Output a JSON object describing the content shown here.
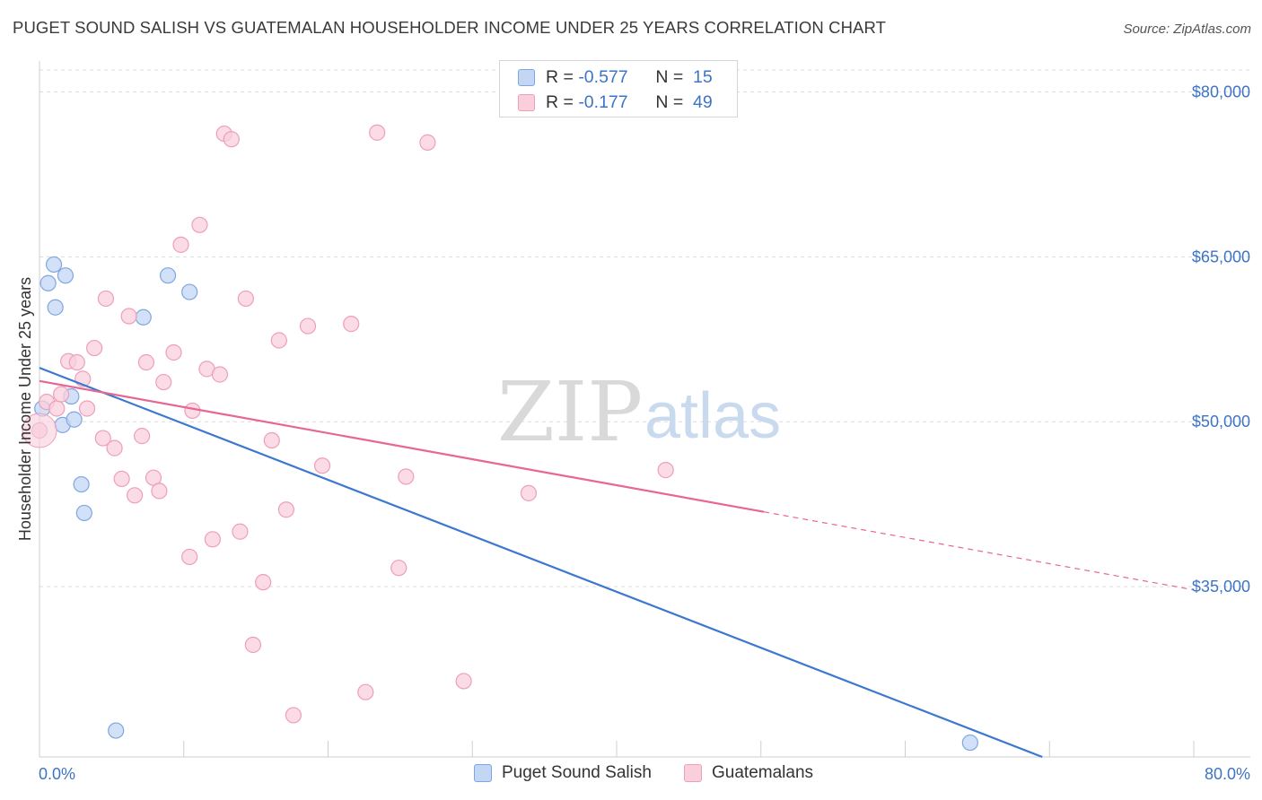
{
  "title": "PUGET SOUND SALISH VS GUATEMALAN HOUSEHOLDER INCOME UNDER 25 YEARS CORRELATION CHART",
  "source": "Source: ZipAtlas.com",
  "watermark": {
    "zip": "ZIP",
    "atlas": "atlas"
  },
  "legend": {
    "rows": [
      {
        "r_label": "R =",
        "r_value": "-0.577",
        "n_label": "N =",
        "n_value": "15"
      },
      {
        "r_label": "R =",
        "r_value": "-0.177",
        "n_label": "N =",
        "n_value": "49"
      }
    ]
  },
  "bottom_legend": [
    "Puget Sound Salish",
    "Guatemalans"
  ],
  "colors": {
    "blue_fill": "#c3d7f5",
    "blue_stroke": "#7ea6e0",
    "blue_line": "#3b78d0",
    "pink_fill": "#f9cfdc",
    "pink_stroke": "#ee9fb8",
    "pink_line": "#e76692",
    "grid": "#dcdcdc",
    "axis_text": "#3d74c6"
  },
  "chart_data": {
    "type": "scatter",
    "title": "PUGET SOUND SALISH VS GUATEMALAN HOUSEHOLDER INCOME UNDER 25 YEARS CORRELATION CHART",
    "xlabel": "",
    "ylabel": "Householder Income Under 25 years",
    "xlim": [
      0,
      80
    ],
    "ylim": [
      19500,
      82000
    ],
    "x_tick_labels": [
      "0.0%",
      "80.0%"
    ],
    "y_ticks": [
      {
        "value": 35000,
        "label": "$35,000"
      },
      {
        "value": 50000,
        "label": "$50,000"
      },
      {
        "value": 65000,
        "label": "$65,000"
      },
      {
        "value": 80000,
        "label": "$80,000"
      }
    ],
    "series": [
      {
        "name": "Puget Sound Salish",
        "r": -0.577,
        "n": 15,
        "points": [
          [
            0.2,
            51200
          ],
          [
            0.6,
            62600
          ],
          [
            1.0,
            64300
          ],
          [
            1.1,
            60400
          ],
          [
            1.8,
            63300
          ],
          [
            2.2,
            52300
          ],
          [
            1.6,
            49700
          ],
          [
            2.4,
            50200
          ],
          [
            2.9,
            44300
          ],
          [
            3.1,
            41700
          ],
          [
            7.2,
            59500
          ],
          [
            8.9,
            63300
          ],
          [
            10.4,
            61800
          ],
          [
            5.3,
            21900
          ],
          [
            64.5,
            20800
          ]
        ],
        "trend": {
          "x": [
            0,
            69.5
          ],
          "y": [
            54900,
            19500
          ],
          "dashed_to": null
        }
      },
      {
        "name": "Guatemalans",
        "r": -0.177,
        "n": 49,
        "points": [
          [
            0.0,
            49200
          ],
          [
            0.5,
            51800
          ],
          [
            1.2,
            51200
          ],
          [
            1.5,
            52500
          ],
          [
            2.0,
            55500
          ],
          [
            2.6,
            55400
          ],
          [
            3.0,
            53900
          ],
          [
            3.3,
            51200
          ],
          [
            3.8,
            56700
          ],
          [
            4.4,
            48500
          ],
          [
            4.6,
            61200
          ],
          [
            5.2,
            47600
          ],
          [
            5.7,
            44800
          ],
          [
            6.2,
            59600
          ],
          [
            6.6,
            43300
          ],
          [
            7.1,
            48700
          ],
          [
            7.4,
            55400
          ],
          [
            7.9,
            44900
          ],
          [
            8.3,
            43700
          ],
          [
            8.6,
            53600
          ],
          [
            9.3,
            56300
          ],
          [
            9.8,
            66100
          ],
          [
            10.4,
            37700
          ],
          [
            10.6,
            51000
          ],
          [
            11.1,
            67900
          ],
          [
            11.6,
            54800
          ],
          [
            12.0,
            39300
          ],
          [
            12.5,
            54300
          ],
          [
            12.8,
            76200
          ],
          [
            13.3,
            75700
          ],
          [
            13.9,
            40000
          ],
          [
            14.3,
            61200
          ],
          [
            14.8,
            29700
          ],
          [
            15.5,
            35400
          ],
          [
            16.1,
            48300
          ],
          [
            16.6,
            57400
          ],
          [
            17.1,
            42000
          ],
          [
            17.6,
            23300
          ],
          [
            18.6,
            58700
          ],
          [
            19.6,
            46000
          ],
          [
            21.6,
            58900
          ],
          [
            22.6,
            25400
          ],
          [
            23.4,
            76300
          ],
          [
            24.9,
            36700
          ],
          [
            25.4,
            45000
          ],
          [
            26.9,
            75400
          ],
          [
            29.4,
            26400
          ],
          [
            33.9,
            43500
          ],
          [
            43.4,
            45600
          ]
        ],
        "trend": {
          "x": [
            0,
            50.2
          ],
          "y": [
            53700,
            41800
          ],
          "dashed_to": {
            "x": 80,
            "y": 34700
          }
        }
      }
    ],
    "grid": true,
    "legend_position": "top-center"
  }
}
